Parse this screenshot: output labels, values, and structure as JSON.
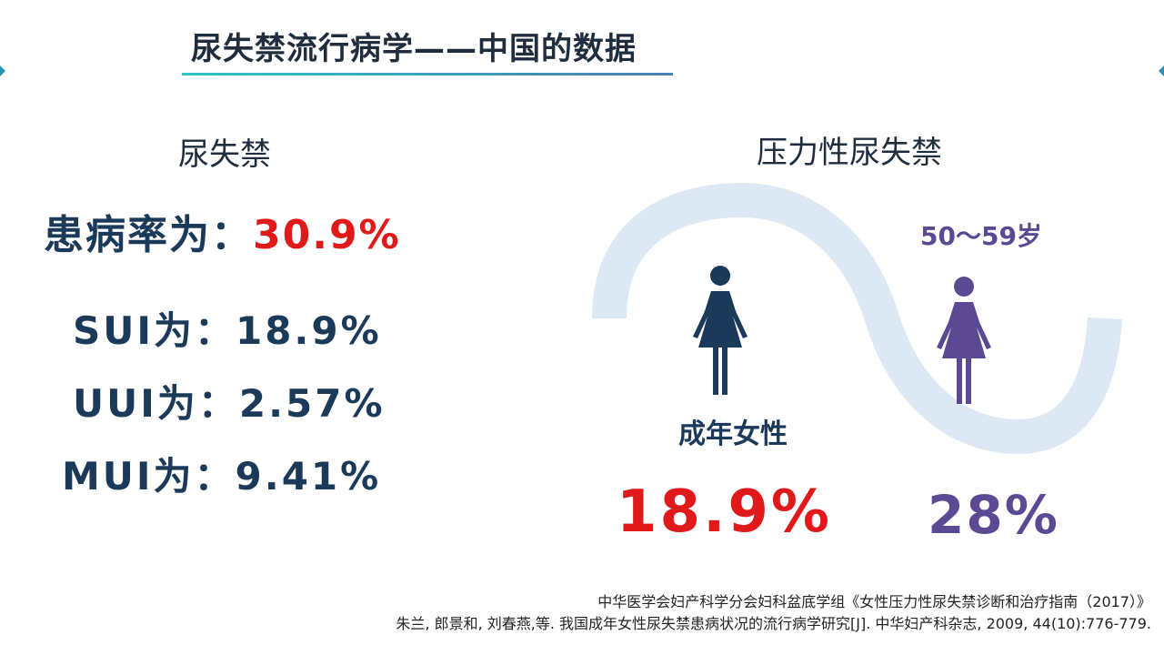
{
  "slide": {
    "title": "尿失禁流行病学——中国的数据",
    "left": {
      "heading": "尿失禁",
      "prevalence_label": "患病率为：",
      "prevalence_value": "30.9%",
      "stats": [
        {
          "label": "SUI为：",
          "value": "18.9%"
        },
        {
          "label": "UUI为：",
          "value": "2.57%"
        },
        {
          "label": "MUI为：",
          "value": "9.41%"
        }
      ]
    },
    "right": {
      "heading": "压力性尿失禁",
      "groups": [
        {
          "label": "成年女性",
          "value": "18.9%",
          "icon": "woman-icon",
          "color": "#1b3a5a"
        },
        {
          "label": "50～59岁",
          "value": "28%",
          "icon": "woman-icon",
          "color": "#5b4a93"
        }
      ]
    },
    "references": [
      "中华医学会妇产科学分会妇科盆底学组《女性压力性尿失禁诊断和治疗指南（2017）》",
      "朱兰, 郎景和, 刘春燕,等. 我国成年女性尿失禁患病状况的流行病学研究[J]. 中华妇产科杂志, 2009, 44(10):776-779."
    ],
    "accent_red": "#e01a1a",
    "accent_navy": "#1b3a5a",
    "accent_purple": "#5b4a93",
    "wave_color": "#dce8f4"
  }
}
